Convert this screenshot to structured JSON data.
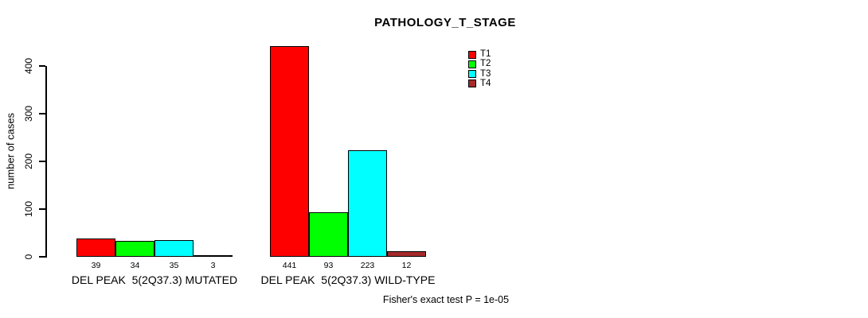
{
  "chart_data": {
    "type": "bar",
    "title": "PATHOLOGY_T_STAGE",
    "ylabel": "number of cases",
    "ylim": [
      0,
      440
    ],
    "yticks": [
      0,
      100,
      200,
      300,
      400
    ],
    "grid": false,
    "legend_position": "top-right-inside",
    "categories": [
      "DEL PEAK  5(2Q37.3) MUTATED",
      "DEL PEAK  5(2Q37.3) WILD-TYPE"
    ],
    "series": [
      {
        "name": "T1",
        "color": "#FF0000",
        "values": [
          39,
          441
        ]
      },
      {
        "name": "T2",
        "color": "#00FF00",
        "values": [
          34,
          93
        ]
      },
      {
        "name": "T3",
        "color": "#00FFFF",
        "values": [
          35,
          223
        ]
      },
      {
        "name": "T4",
        "color": "#A52A2A",
        "values": [
          3,
          12
        ]
      }
    ],
    "annotation": "Fisher's exact test P = 1e-05"
  }
}
